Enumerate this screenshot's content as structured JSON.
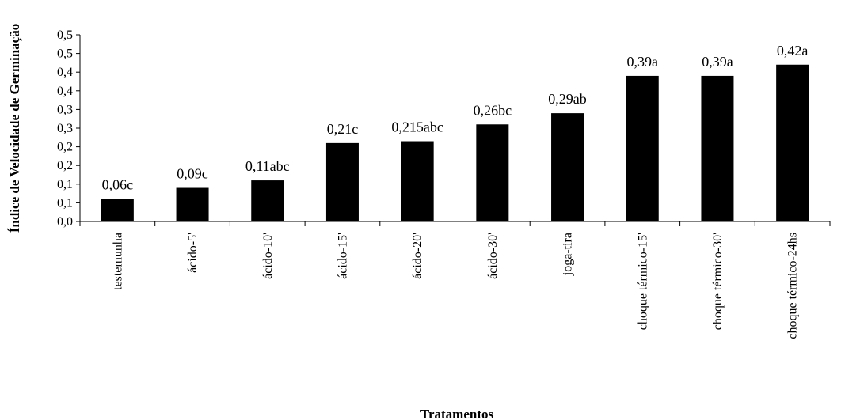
{
  "chart_data": {
    "type": "bar",
    "ylabel": "Índice de Velocidade de Germinação",
    "xlabel": "Tratamentos",
    "ylim": [
      0,
      0.5
    ],
    "yticks": [
      "0,0",
      "0,1",
      "0,1",
      "0,2",
      "0,2",
      "0,3",
      "0,3",
      "0,4",
      "0,4",
      "0,5",
      "0,5"
    ],
    "grid": false,
    "bar_color": "#000000",
    "categories": [
      "testemunha",
      "ácido-5'",
      "ácido-10'",
      "ácido-15'",
      "ácido-20'",
      "ácido-30'",
      "joga-tira",
      "choque térmico-15'",
      "choque térmico-30'",
      "choque térmico-24hs"
    ],
    "values": [
      0.06,
      0.09,
      0.11,
      0.21,
      0.215,
      0.26,
      0.29,
      0.39,
      0.39,
      0.42
    ],
    "data_labels": [
      "0,06c",
      "0,09c",
      "0,11abc",
      "0,21c",
      "0,215abc",
      "0,26bc",
      "0,29ab",
      "0,39a",
      "0,39a",
      "0,42a"
    ]
  }
}
